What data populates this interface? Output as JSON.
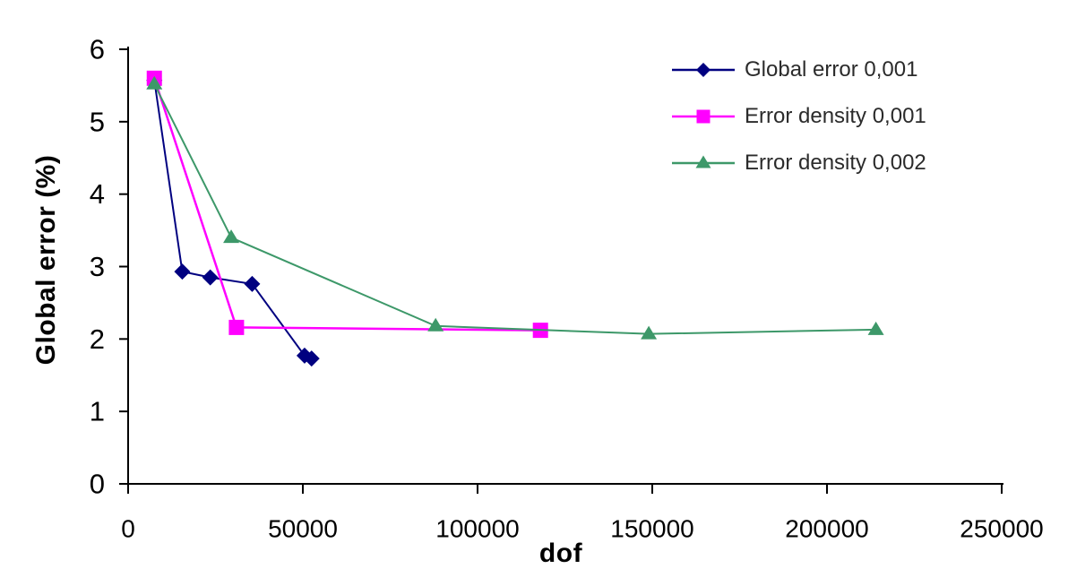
{
  "chart_data": {
    "type": "line",
    "title": "",
    "xlabel": "dof",
    "ylabel": "Global error (%)",
    "xlim": [
      0,
      250000
    ],
    "ylim": [
      0,
      6
    ],
    "x_tick_labels": [
      "0",
      "50000",
      "100000",
      "150000",
      "200000",
      "250000"
    ],
    "x_tick_values": [
      0,
      50000,
      100000,
      150000,
      200000,
      250000
    ],
    "y_tick_labels": [
      "0",
      "1",
      "2",
      "3",
      "4",
      "5",
      "6"
    ],
    "y_tick_values": [
      0,
      1,
      2,
      3,
      4,
      5,
      6
    ],
    "grid": false,
    "legend_position": "top-right",
    "axis_color": "#000000",
    "series": [
      {
        "name": "Global error 0,001",
        "color": "#000080",
        "marker": "diamond",
        "points": [
          [
            7500,
            5.57
          ],
          [
            15500,
            2.93
          ],
          [
            23500,
            2.85
          ],
          [
            35500,
            2.76
          ],
          [
            50500,
            1.77
          ],
          [
            52500,
            1.73
          ]
        ]
      },
      {
        "name": "Error density 0,001",
        "color": "#ff00ff",
        "marker": "square",
        "points": [
          [
            7500,
            5.6
          ],
          [
            31000,
            2.16
          ],
          [
            118000,
            2.12
          ]
        ]
      },
      {
        "name": "Error density 0,002",
        "color": "#3d9869",
        "marker": "triangle",
        "points": [
          [
            7500,
            5.52
          ],
          [
            29500,
            3.4
          ],
          [
            88000,
            2.18
          ],
          [
            149000,
            2.07
          ],
          [
            214000,
            2.13
          ]
        ]
      }
    ]
  }
}
